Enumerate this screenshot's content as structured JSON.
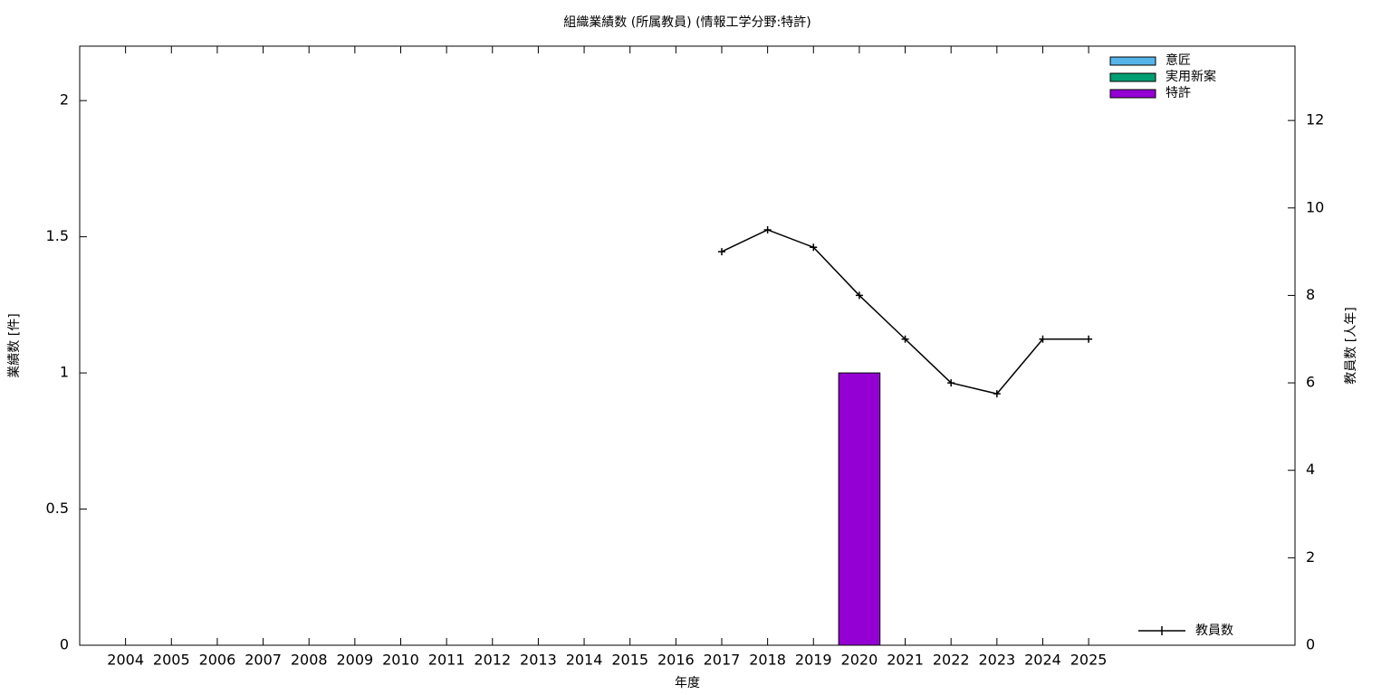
{
  "chart_data": {
    "type": "bar",
    "title": "組織業績数 (所属教員) (情報工学分野:特許)",
    "x_label": "年度",
    "y_label": "業績数 [件]",
    "y2_label": "教員数 [人年]",
    "categories": [
      "2004",
      "2005",
      "2006",
      "2007",
      "2008",
      "2009",
      "2010",
      "2011",
      "2012",
      "2013",
      "2014",
      "2015",
      "2016",
      "2017",
      "2018",
      "2019",
      "2020",
      "2021",
      "2022",
      "2023",
      "2024",
      "2025"
    ],
    "stacked": true,
    "series": [
      {
        "name": "意匠",
        "color": "#56b4e9",
        "values": [
          0,
          0,
          0,
          0,
          0,
          0,
          0,
          0,
          0,
          0,
          0,
          0,
          0,
          0,
          0,
          0,
          0,
          0,
          0,
          0,
          0,
          0
        ]
      },
      {
        "name": "実用新案",
        "color": "#009e73",
        "values": [
          0,
          0,
          0,
          0,
          0,
          0,
          0,
          0,
          0,
          0,
          0,
          0,
          0,
          0,
          0,
          0,
          0,
          0,
          0,
          0,
          0,
          0
        ]
      },
      {
        "name": "特許",
        "color": "#9400d3",
        "values": [
          0,
          0,
          0,
          0,
          0,
          0,
          0,
          0,
          0,
          0,
          0,
          0,
          0,
          0,
          0,
          0,
          1,
          0,
          0,
          0,
          0,
          0
        ]
      },
      {
        "name": "教員数",
        "type": "line",
        "axis": "y2",
        "color": "#000000",
        "values": [
          null,
          null,
          null,
          null,
          null,
          null,
          null,
          null,
          null,
          null,
          null,
          null,
          null,
          9,
          9.5,
          9.1,
          8,
          7,
          6,
          5.75,
          7,
          7
        ]
      }
    ],
    "ylim": [
      0,
      2.2
    ],
    "yticks": [
      0,
      0.5,
      1,
      1.5,
      2
    ],
    "y2lim": [
      0,
      13.7
    ],
    "y2ticks": [
      0,
      2,
      4,
      6,
      8,
      10,
      12
    ]
  }
}
